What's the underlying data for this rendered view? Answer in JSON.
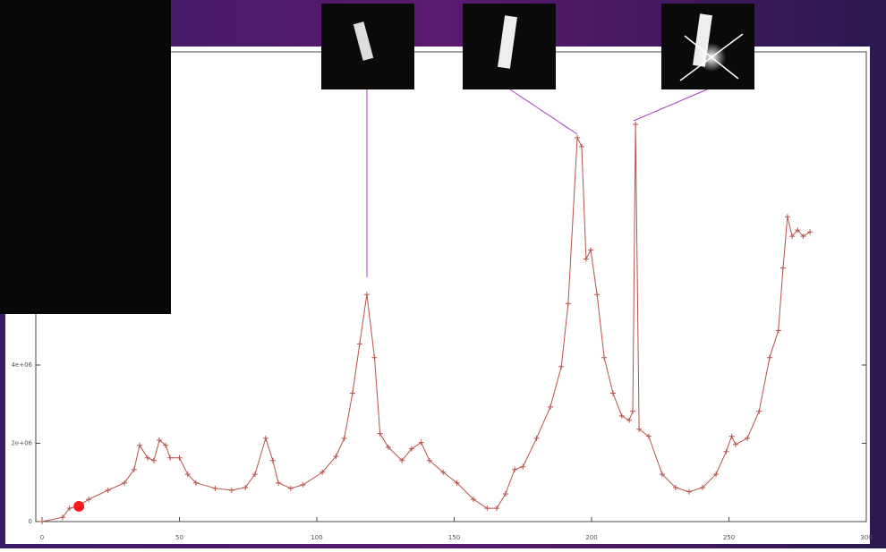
{
  "chart_data": {
    "type": "line",
    "x": [
      0,
      7.5,
      10,
      13,
      17,
      24,
      30,
      33.5,
      35.5,
      38.4,
      40.7,
      42.7,
      45,
      46.6,
      50,
      53,
      56,
      63,
      69,
      74,
      77.5,
      81.4,
      84,
      86,
      90.5,
      95,
      102,
      107,
      110,
      113,
      115.6,
      118.2,
      121,
      123,
      126,
      131,
      134.5,
      138,
      141,
      146,
      151,
      157,
      162,
      165.5,
      168.7,
      172,
      175,
      180,
      185,
      189,
      191.5,
      194.8,
      196.4,
      198,
      199.7,
      202,
      204.6,
      207.8,
      211,
      213.7,
      215,
      216,
      217.3,
      220.8,
      225.7,
      230.6,
      235.5,
      240.4,
      245.3,
      249,
      251,
      252.4,
      256.7,
      261,
      264.8,
      268,
      269.7,
      271.3,
      273,
      275,
      277,
      279.5
    ],
    "series": [
      {
        "color": "#b5524a",
        "values": [
          0,
          110000,
          340000,
          390000,
          570000,
          800000,
          990000,
          1330000,
          1950000,
          1630000,
          1560000,
          2080000,
          1950000,
          1630000,
          1630000,
          1210000,
          990000,
          850000,
          800000,
          870000,
          1210000,
          2130000,
          1560000,
          990000,
          850000,
          940000,
          1260000,
          1670000,
          2130000,
          3280000,
          4540000,
          5800000,
          4190000,
          2250000,
          1900000,
          1560000,
          1860000,
          2020000,
          1560000,
          1260000,
          990000,
          570000,
          340000,
          340000,
          710000,
          1330000,
          1400000,
          2130000,
          2930000,
          3960000,
          5570000,
          9810000,
          9580000,
          6710000,
          6940000,
          5800000,
          4190000,
          3280000,
          2700000,
          2590000,
          2820000,
          10150000,
          2360000,
          2180000,
          1210000,
          870000,
          760000,
          870000,
          1210000,
          1790000,
          2180000,
          1970000,
          2130000,
          2820000,
          4190000,
          4880000,
          6480000,
          7790000,
          7290000,
          7450000,
          7290000,
          7400000
        ]
      }
    ],
    "xlim": [
      0,
      300
    ],
    "xticks": [
      0,
      50,
      100,
      150,
      200,
      250,
      300
    ],
    "ylim": [
      0,
      12000000
    ],
    "yticks": [
      0,
      {
        "value": 2000000,
        "label": "2e+06"
      },
      {
        "value": 4000000,
        "label": "4e+06"
      }
    ],
    "highlight_point": {
      "x": 13.4,
      "y": 390000,
      "color": "#ff1a1a"
    }
  }
}
